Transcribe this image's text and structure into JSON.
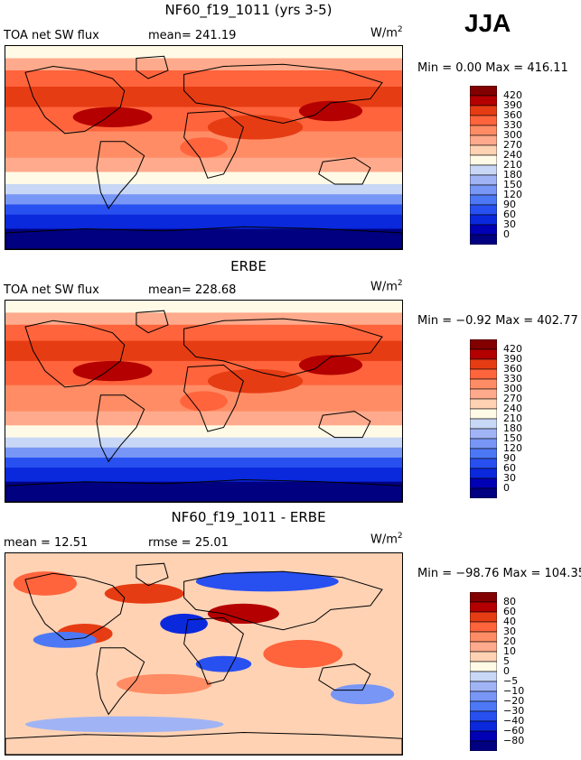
{
  "season": "JJA",
  "unit": "W/m",
  "unit_exp": "2",
  "panels": [
    {
      "title": "NF60_f19_1011 (yrs 3-5)",
      "left_label": "TOA net SW flux",
      "mid_label": "mean= 241.19",
      "minmax": "Min =    0.00 Max = 416.11"
    },
    {
      "title": "ERBE",
      "left_label": "TOA net SW flux",
      "mid_label": "mean= 228.68",
      "minmax": "Min =  −0.92 Max = 402.77"
    },
    {
      "title": "NF60_f19_1011 - ERBE",
      "left_label": "mean =   12.51",
      "mid_label": "rmse =   25.01",
      "minmax": "Min = −98.76 Max = 104.35"
    }
  ],
  "chart_data": [
    {
      "type": "heatmap",
      "title": "NF60_f19_1011 (yrs 3-5)",
      "variable": "TOA net SW flux",
      "season": "JJA",
      "mean": 241.19,
      "min": 0.0,
      "max": 416.11,
      "units": "W/m2",
      "contour_levels": [
        0,
        30,
        60,
        90,
        120,
        150,
        180,
        210,
        240,
        270,
        300,
        330,
        360,
        390,
        420
      ],
      "colorbar_labels": [
        "420",
        "390",
        "360",
        "330",
        "300",
        "270",
        "240",
        "210",
        "180",
        "150",
        "120",
        "90",
        "60",
        "30",
        "0"
      ],
      "colors": [
        "#000080",
        "#0000b4",
        "#0a28dc",
        "#2850f0",
        "#4c78f5",
        "#7896f5",
        "#a0b4f5",
        "#c8d7f5",
        "#fffae6",
        "#ffd2b4",
        "#ffaa8c",
        "#ff8c64",
        "#ff643c",
        "#e63c14",
        "#b40000",
        "#820000"
      ]
    },
    {
      "type": "heatmap",
      "title": "ERBE",
      "variable": "TOA net SW flux",
      "season": "JJA",
      "mean": 228.68,
      "min": -0.92,
      "max": 402.77,
      "units": "W/m2",
      "contour_levels": [
        0,
        30,
        60,
        90,
        120,
        150,
        180,
        210,
        240,
        270,
        300,
        330,
        360,
        390,
        420
      ],
      "colorbar_labels": [
        "420",
        "390",
        "360",
        "330",
        "300",
        "270",
        "240",
        "210",
        "180",
        "150",
        "120",
        "90",
        "60",
        "30",
        "0"
      ],
      "colors": [
        "#000080",
        "#0000b4",
        "#0a28dc",
        "#2850f0",
        "#4c78f5",
        "#7896f5",
        "#a0b4f5",
        "#c8d7f5",
        "#fffae6",
        "#ffd2b4",
        "#ffaa8c",
        "#ff8c64",
        "#ff643c",
        "#e63c14",
        "#b40000",
        "#820000"
      ]
    },
    {
      "type": "heatmap",
      "title": "NF60_f19_1011 - ERBE",
      "season": "JJA",
      "mean": 12.51,
      "rmse": 25.01,
      "min": -98.76,
      "max": 104.35,
      "units": "W/m2",
      "contour_levels": [
        -80,
        -60,
        -40,
        -30,
        -20,
        -10,
        -5,
        0,
        5,
        10,
        20,
        30,
        40,
        60,
        80
      ],
      "colorbar_labels": [
        "80",
        "60",
        "40",
        "30",
        "20",
        "10",
        "5",
        "0",
        "−5",
        "−10",
        "−20",
        "−30",
        "−40",
        "−60",
        "−80"
      ],
      "colors": [
        "#000080",
        "#0000b4",
        "#0a28dc",
        "#2850f0",
        "#4c78f5",
        "#7896f5",
        "#a0b4f5",
        "#c8d7f5",
        "#fffae6",
        "#ffd2b4",
        "#ffaa8c",
        "#ff8c64",
        "#ff643c",
        "#e63c14",
        "#b40000",
        "#820000"
      ]
    }
  ]
}
